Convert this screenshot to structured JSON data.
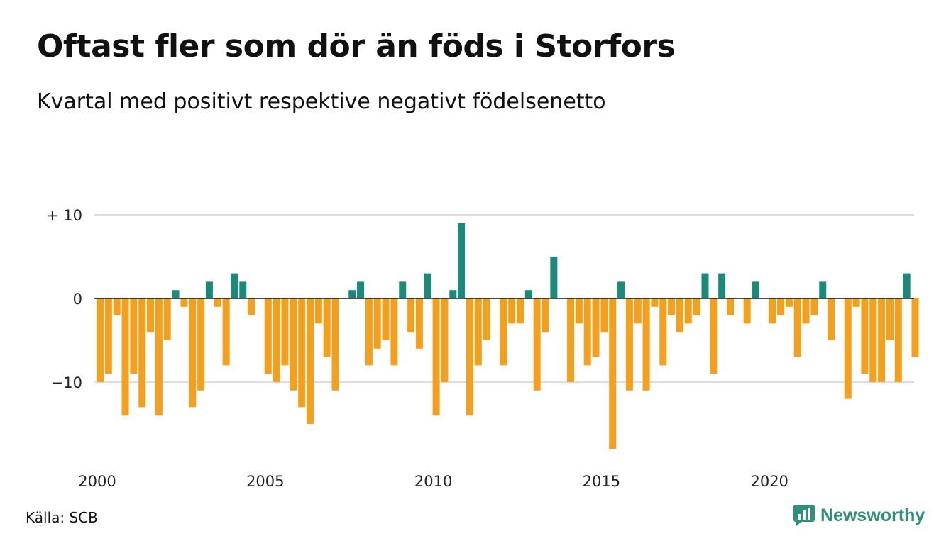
{
  "header": {
    "title": "Oftast fler som dör än föds i Storfors",
    "subtitle": "Kvartal med positivt respektive negativt födelsenetto"
  },
  "footer": {
    "source": "Källa: SCB",
    "brand": "Newsworthy",
    "brand_icon": "bar-chart-logo-icon"
  },
  "colors": {
    "positive": "#1a8a7a",
    "negative": "#f5a01c",
    "grid": "#dddddd",
    "zero_line": "#111111",
    "brand": "#2f8f78"
  },
  "chart_data": {
    "type": "bar",
    "title": "Oftast fler som dör än föds i Storfors",
    "subtitle": "Kvartal med positivt respektive negativt födelsenetto",
    "xlabel": "",
    "ylabel": "",
    "ylim": [
      -18,
      10
    ],
    "y_ticks": [
      {
        "value": 10,
        "label": "+ 10"
      },
      {
        "value": 0,
        "label": "0"
      },
      {
        "value": -10,
        "label": "−10"
      }
    ],
    "x_ticks": [
      "2000",
      "2005",
      "2010",
      "2015",
      "2020"
    ],
    "x_start": "2000 Q1",
    "grid": true,
    "legend": "none",
    "values": [
      -10,
      -9,
      -2,
      -14,
      -9,
      -13,
      -4,
      -14,
      -5,
      1,
      -1,
      -13,
      -11,
      2,
      -1,
      -8,
      3,
      2,
      -2,
      0,
      -9,
      -10,
      -8,
      -11,
      -13,
      -15,
      -3,
      -7,
      -11,
      0,
      1,
      2,
      -8,
      -6,
      -5,
      -8,
      2,
      -4,
      -6,
      3,
      -14,
      -10,
      1,
      9,
      -14,
      -8,
      -5,
      0,
      -8,
      -3,
      -3,
      1,
      -11,
      -4,
      5,
      0,
      -10,
      -3,
      -8,
      -7,
      -4,
      -18,
      2,
      -11,
      -3,
      -11,
      -1,
      -8,
      -2,
      -4,
      -3,
      -2,
      3,
      -9,
      3,
      -2,
      0,
      -3,
      2,
      0,
      -3,
      -2,
      -1,
      -7,
      -3,
      -2,
      2,
      -5,
      0,
      -12,
      -1,
      -9,
      -10,
      -10,
      -5,
      -10,
      3,
      -7
    ]
  }
}
